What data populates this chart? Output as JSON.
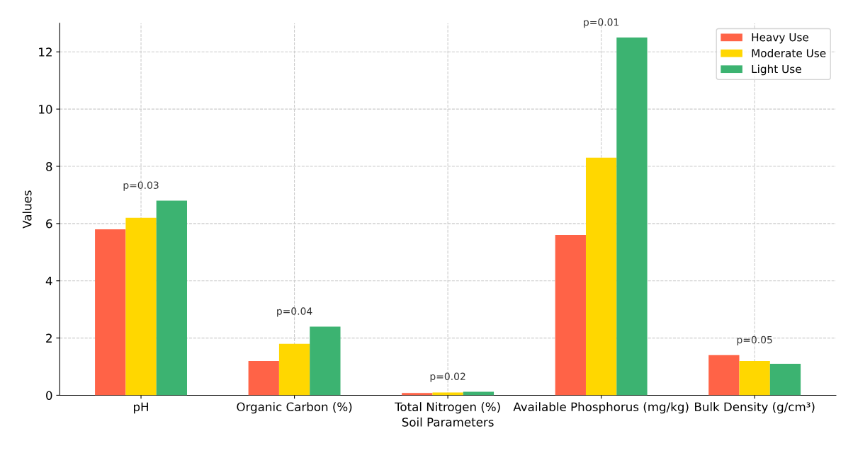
{
  "chart_data": {
    "type": "bar",
    "xlabel": "Soil Parameters",
    "ylabel": "Values",
    "categories": [
      "pH",
      "Organic Carbon (%)",
      "Total Nitrogen (%)",
      "Available Phosphorus (mg/kg)",
      "Bulk Density (g/cm³)"
    ],
    "series": [
      {
        "name": "Heavy Use",
        "color": "#ff6347",
        "values": [
          5.8,
          1.2,
          0.08,
          5.6,
          1.4
        ]
      },
      {
        "name": "Moderate Use",
        "color": "#ffd700",
        "values": [
          6.2,
          1.8,
          0.1,
          8.3,
          1.2
        ]
      },
      {
        "name": "Light Use",
        "color": "#3cb371",
        "values": [
          6.8,
          2.4,
          0.12,
          12.5,
          1.1
        ]
      }
    ],
    "ylim": [
      0,
      13
    ],
    "yticks": [
      0,
      2,
      4,
      6,
      8,
      10,
      12
    ],
    "grid": true,
    "legend": "top right",
    "annotations": [
      "p=0.03",
      "p=0.04",
      "p=0.02",
      "p=0.01",
      "p=0.05"
    ]
  }
}
